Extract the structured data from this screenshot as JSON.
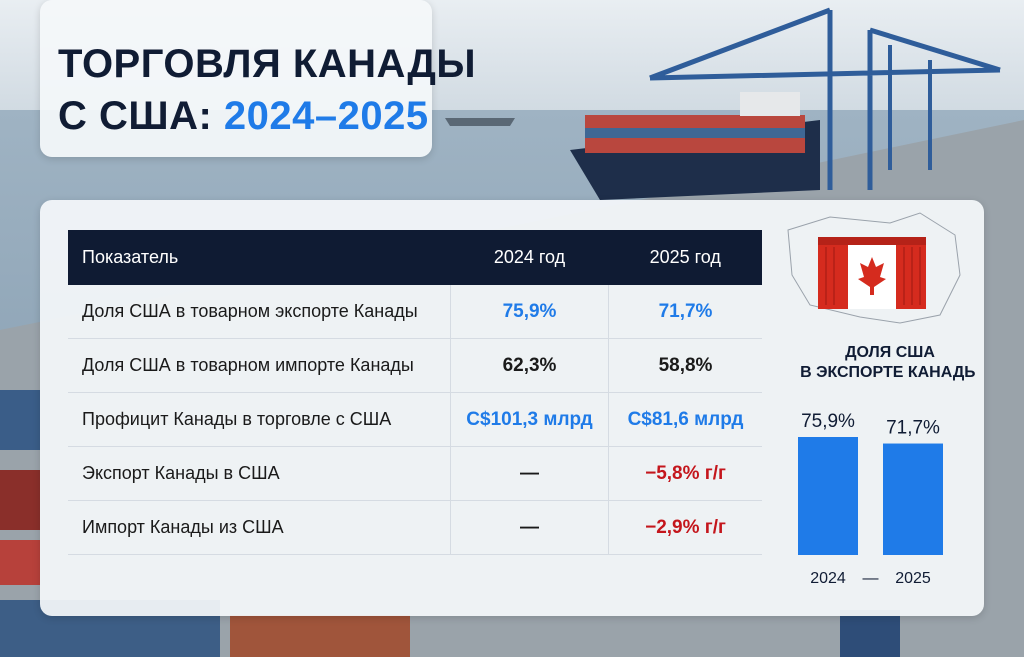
{
  "title": {
    "line1": "ТОРГОВЛЯ КАНАДЫ",
    "line2": "С США:",
    "years": "2024–2025"
  },
  "table": {
    "header": [
      "Показатель",
      "2024 год",
      "2025 год"
    ],
    "rows": [
      [
        "Доля США в товарном экспорте Канады",
        "75,9%",
        "71,7%"
      ],
      [
        "Доля США в товарном импорте Канады",
        "62,3%",
        "58,8%"
      ],
      [
        "Профицит Канады в торговле с США",
        "C$101,3 млрд",
        "C$81,6 млрд"
      ],
      [
        "Экспорт Канады в США",
        "—",
        "−5,8% г/г"
      ],
      [
        "Импорт Канады из США",
        "—",
        "−2,9% г/г"
      ]
    ]
  },
  "chart_data": {
    "type": "bar",
    "title_lines": [
      "ДОЛЯ США",
      "В ЭКСПОРТЕ КАНАДЫ"
    ],
    "categories": [
      "2024",
      "2025"
    ],
    "separator": "—",
    "values": [
      75.9,
      71.7
    ],
    "value_labels": [
      "75,9%",
      "71,7%"
    ],
    "color": "#1f7be8"
  }
}
